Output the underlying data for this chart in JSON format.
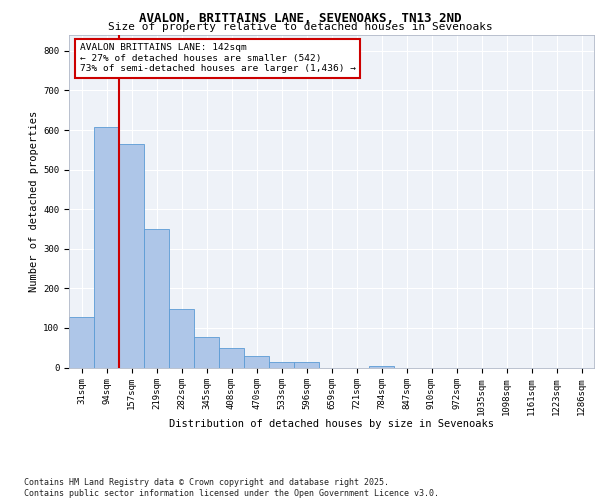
{
  "title1": "AVALON, BRITTAINS LANE, SEVENOAKS, TN13 2ND",
  "title2": "Size of property relative to detached houses in Sevenoaks",
  "xlabel": "Distribution of detached houses by size in Sevenoaks",
  "ylabel": "Number of detached properties",
  "bin_labels": [
    "31sqm",
    "94sqm",
    "157sqm",
    "219sqm",
    "282sqm",
    "345sqm",
    "408sqm",
    "470sqm",
    "533sqm",
    "596sqm",
    "659sqm",
    "721sqm",
    "784sqm",
    "847sqm",
    "910sqm",
    "972sqm",
    "1035sqm",
    "1098sqm",
    "1161sqm",
    "1223sqm",
    "1286sqm"
  ],
  "bar_values": [
    128,
    607,
    565,
    350,
    148,
    78,
    50,
    30,
    15,
    15,
    0,
    0,
    5,
    0,
    0,
    0,
    0,
    0,
    0,
    0,
    0
  ],
  "bar_color": "#aec6e8",
  "bar_edge_color": "#5b9bd5",
  "vline_color": "#cc0000",
  "annotation_text": "AVALON BRITTAINS LANE: 142sqm\n← 27% of detached houses are smaller (542)\n73% of semi-detached houses are larger (1,436) →",
  "annotation_box_color": "#cc0000",
  "ylim": [
    0,
    840
  ],
  "yticks": [
    0,
    100,
    200,
    300,
    400,
    500,
    600,
    700,
    800
  ],
  "footer_text": "Contains HM Land Registry data © Crown copyright and database right 2025.\nContains public sector information licensed under the Open Government Licence v3.0.",
  "bg_color": "#eef2f8",
  "grid_color": "#ffffff",
  "title1_fontsize": 9,
  "title2_fontsize": 8,
  "axis_label_fontsize": 7.5,
  "tick_fontsize": 6.5,
  "annotation_fontsize": 6.8,
  "footer_fontsize": 6.0
}
